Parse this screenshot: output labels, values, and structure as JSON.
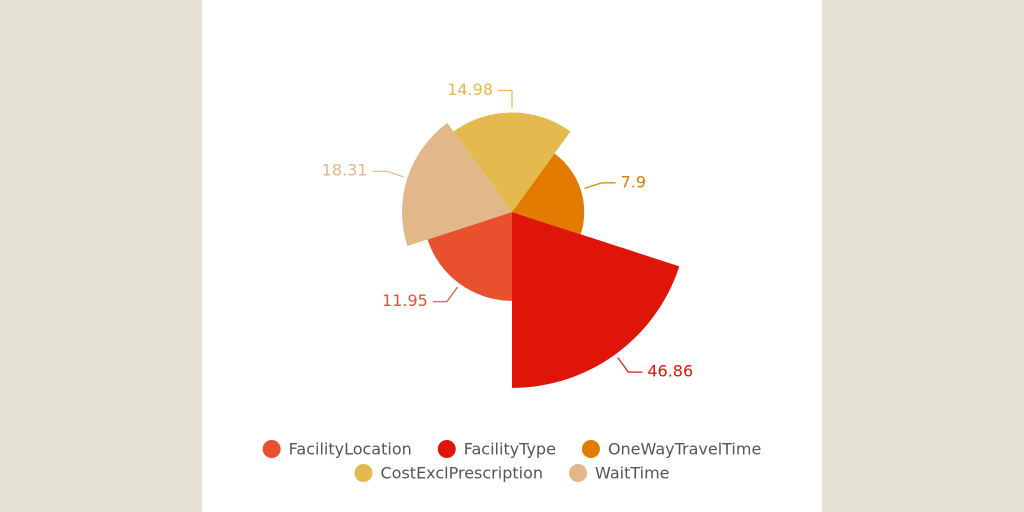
{
  "chart_data": {
    "type": "rose",
    "categories": [
      "FacilityLocation",
      "FacilityType",
      "OneWayTravelTime",
      "CostExclPrescription",
      "WaitTime"
    ],
    "values": [
      11.95,
      46.86,
      7.9,
      14.98,
      18.31
    ],
    "colors": [
      "#e8502e",
      "#e01509",
      "#e27b00",
      "#e4ba4f",
      "#e2b789"
    ],
    "legend": "bottom"
  }
}
